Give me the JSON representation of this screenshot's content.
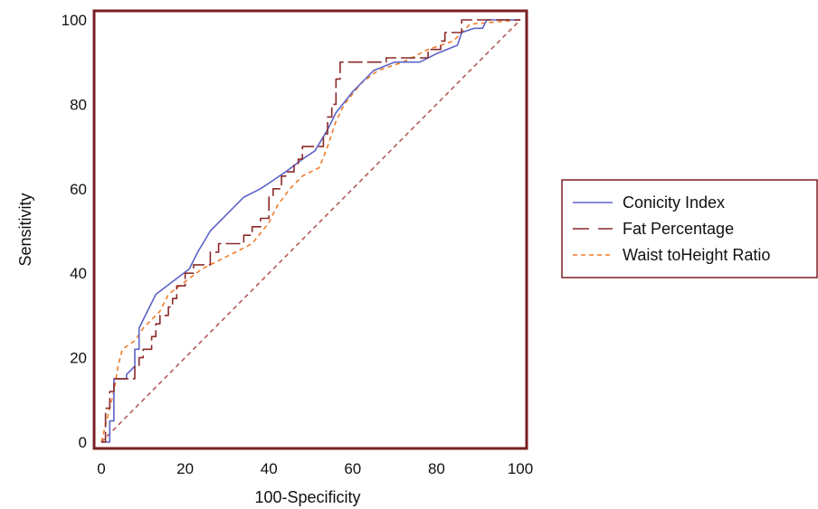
{
  "chart_data": {
    "type": "line",
    "xlabel": "100-Specificity",
    "ylabel": "Sensitivity",
    "xlim": [
      0,
      100
    ],
    "ylim": [
      0,
      100
    ],
    "x_ticks": [
      0,
      20,
      40,
      60,
      80,
      100
    ],
    "y_ticks": [
      0,
      20,
      40,
      60,
      80,
      100
    ],
    "grid": false,
    "legend_position": "right",
    "frame_color": "#7a1f22",
    "series": [
      {
        "name": "Conicity Index",
        "color": "#5b63c8",
        "dash": "solid",
        "points": [
          [
            0,
            0
          ],
          [
            1,
            0
          ],
          [
            2,
            0
          ],
          [
            2,
            5
          ],
          [
            3,
            5
          ],
          [
            3,
            15
          ],
          [
            6,
            15
          ],
          [
            6,
            16
          ],
          [
            8,
            18
          ],
          [
            8,
            22
          ],
          [
            9,
            22
          ],
          [
            9,
            27
          ],
          [
            10,
            29
          ],
          [
            12,
            33
          ],
          [
            13,
            35
          ],
          [
            17,
            38
          ],
          [
            21,
            41
          ],
          [
            23,
            45
          ],
          [
            26,
            50
          ],
          [
            30,
            54
          ],
          [
            34,
            58
          ],
          [
            38,
            60
          ],
          [
            41,
            62
          ],
          [
            44,
            64
          ],
          [
            48,
            67
          ],
          [
            51,
            69
          ],
          [
            54,
            74
          ],
          [
            56,
            78
          ],
          [
            60,
            83
          ],
          [
            65,
            88
          ],
          [
            70,
            90
          ],
          [
            76,
            90
          ],
          [
            80,
            92
          ],
          [
            85,
            94
          ],
          [
            86,
            97
          ],
          [
            89,
            98
          ],
          [
            91,
            98
          ],
          [
            92,
            100
          ],
          [
            100,
            100
          ]
        ]
      },
      {
        "name": "Fat Percentage",
        "color": "#8b2a2a",
        "dash": "longdash",
        "points": [
          [
            0,
            0
          ],
          [
            1,
            0
          ],
          [
            1,
            8
          ],
          [
            2,
            8
          ],
          [
            2,
            12
          ],
          [
            3,
            12
          ],
          [
            3,
            15
          ],
          [
            8,
            15
          ],
          [
            8,
            18
          ],
          [
            9,
            18
          ],
          [
            9,
            20
          ],
          [
            10,
            20
          ],
          [
            10,
            22
          ],
          [
            12,
            22
          ],
          [
            12,
            25
          ],
          [
            13,
            25
          ],
          [
            13,
            28
          ],
          [
            14,
            28
          ],
          [
            14,
            30
          ],
          [
            16,
            30
          ],
          [
            16,
            32
          ],
          [
            17,
            32
          ],
          [
            17,
            34
          ],
          [
            18,
            34
          ],
          [
            18,
            37
          ],
          [
            20,
            37
          ],
          [
            20,
            40
          ],
          [
            22,
            40
          ],
          [
            22,
            42
          ],
          [
            26,
            42
          ],
          [
            26,
            45
          ],
          [
            28,
            45
          ],
          [
            28,
            47
          ],
          [
            34,
            47
          ],
          [
            34,
            49
          ],
          [
            36,
            49
          ],
          [
            36,
            51
          ],
          [
            38,
            51
          ],
          [
            38,
            53
          ],
          [
            40,
            53
          ],
          [
            40,
            58
          ],
          [
            41,
            58
          ],
          [
            41,
            60
          ],
          [
            43,
            60
          ],
          [
            43,
            63
          ],
          [
            44,
            63
          ],
          [
            44,
            64
          ],
          [
            46,
            64
          ],
          [
            46,
            66
          ],
          [
            47,
            66
          ],
          [
            47,
            67
          ],
          [
            48,
            67
          ],
          [
            48,
            70
          ],
          [
            53,
            70
          ],
          [
            53,
            73
          ],
          [
            54,
            73
          ],
          [
            54,
            77
          ],
          [
            55,
            77
          ],
          [
            55,
            80
          ],
          [
            56,
            80
          ],
          [
            56,
            86
          ],
          [
            57,
            86
          ],
          [
            57,
            90
          ],
          [
            68,
            90
          ],
          [
            68,
            91
          ],
          [
            78,
            91
          ],
          [
            78,
            93
          ],
          [
            81,
            93
          ],
          [
            81,
            95
          ],
          [
            82,
            95
          ],
          [
            82,
            97
          ],
          [
            86,
            97
          ],
          [
            86,
            100
          ],
          [
            100,
            100
          ]
        ]
      },
      {
        "name": "Waist toHeight Ratio",
        "color": "#f07d2a",
        "dash": "dashed",
        "points": [
          [
            0,
            0
          ],
          [
            1,
            4
          ],
          [
            2,
            8
          ],
          [
            3,
            12
          ],
          [
            4,
            18
          ],
          [
            5,
            22
          ],
          [
            8,
            24
          ],
          [
            10,
            27
          ],
          [
            14,
            31
          ],
          [
            16,
            35
          ],
          [
            20,
            38
          ],
          [
            24,
            41
          ],
          [
            28,
            43
          ],
          [
            32,
            45
          ],
          [
            36,
            47
          ],
          [
            40,
            52
          ],
          [
            42,
            56
          ],
          [
            45,
            60
          ],
          [
            48,
            63
          ],
          [
            52,
            65
          ],
          [
            54,
            70
          ],
          [
            56,
            76
          ],
          [
            58,
            80
          ],
          [
            62,
            85
          ],
          [
            66,
            88
          ],
          [
            72,
            90
          ],
          [
            78,
            93
          ],
          [
            84,
            95
          ],
          [
            88,
            99
          ],
          [
            100,
            100
          ]
        ]
      },
      {
        "name": "",
        "color": "#b35a5a",
        "dash": "dashed",
        "points": [
          [
            0,
            0
          ],
          [
            100,
            100
          ]
        ]
      }
    ]
  }
}
